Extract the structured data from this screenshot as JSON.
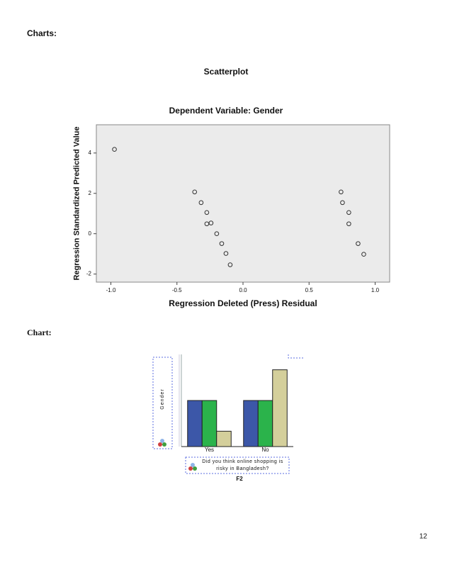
{
  "headings": [
    "Charts:",
    "Chart:"
  ],
  "page_number": 12,
  "chart_data": [
    {
      "type": "scatter",
      "title": "Scatterplot",
      "subtitle": "Dependent Variable: Gender",
      "x_label": "Regression Deleted (Press) Residual",
      "y_label": "Regression Standardized Predicted Value",
      "x": [
        -0.973,
        -0.366,
        -0.317,
        -0.274,
        -0.274,
        -0.242,
        -0.199,
        -0.161,
        -0.129,
        -0.097,
        0.742,
        0.753,
        0.801,
        0.801,
        0.871,
        0.914
      ],
      "values": [
        4.18,
        2.07,
        1.54,
        1.05,
        0.49,
        0.53,
        0.0,
        -0.49,
        -0.98,
        -1.54,
        2.07,
        1.54,
        1.05,
        0.49,
        -0.49,
        -1.02
      ],
      "color": "#333333",
      "background": "#ebebeb",
      "xlim": [
        -1.11,
        1.11
      ],
      "xticks": [
        {
          "value": -1,
          "label": "-1.0"
        },
        {
          "value": -0.5,
          "label": "-0.5"
        },
        {
          "value": 0,
          "label": "0.0"
        },
        {
          "value": 0.5,
          "label": "0.5"
        },
        {
          "value": 1,
          "label": "1.0"
        }
      ],
      "ylim": [
        -2.4,
        5.4
      ],
      "yticks": [
        -2,
        0,
        2,
        4
      ]
    },
    {
      "type": "bar",
      "y_label": "Gender",
      "x_label": "Did you think online shopping is risky in Bangladesh?",
      "x_sublabel": "F2",
      "categories": [
        "Yes",
        "No"
      ],
      "series": [
        {
          "color": "#3c57a8",
          "values": [
            3,
            3
          ]
        },
        {
          "color": "#2bb34b",
          "values": [
            3,
            3
          ]
        },
        {
          "color": "#d4cf9b",
          "values": [
            1,
            5
          ]
        }
      ],
      "ylim": [
        0,
        6
      ]
    }
  ]
}
